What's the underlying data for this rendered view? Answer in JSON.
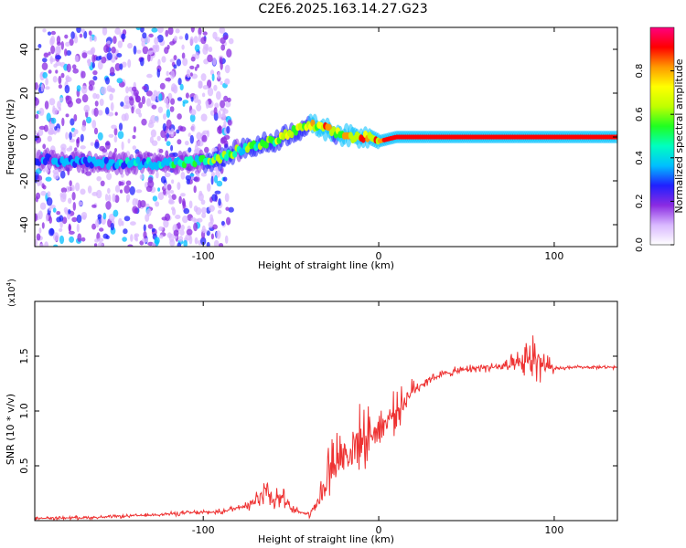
{
  "page_title": "C2E6.2025.163.14.27.G23",
  "chart_data": [
    {
      "type": "heatmap",
      "title": "C2E6.2025.163.14.27.G23",
      "xlabel": "Height of straight line (km)",
      "ylabel": "Frequency (Hz)",
      "xlim": [
        -196,
        136
      ],
      "ylim": [
        -50,
        50
      ],
      "x_ticks": [
        -100,
        0,
        100
      ],
      "y_ticks": [
        -40,
        -20,
        0,
        20,
        40
      ],
      "colorbar": {
        "label": "Normalized spectral amplitude",
        "range": [
          0,
          1
        ],
        "ticks": [
          0.0,
          0.2,
          0.4,
          0.6,
          0.8
        ],
        "colors": [
          "#ffffff",
          "#d9b8ff",
          "#8a2be2",
          "#2020ff",
          "#00bfff",
          "#00ffc0",
          "#20ff20",
          "#c0ff00",
          "#ffff00",
          "#ff9900",
          "#ff0000",
          "#ff0080"
        ]
      },
      "ridge": {
        "x": [
          -196,
          -160,
          -140,
          -120,
          -100,
          -90,
          -80,
          -70,
          -60,
          -50,
          -40,
          -35,
          -25,
          -15,
          -5,
          0,
          10,
          30,
          60,
          90,
          120,
          136
        ],
        "freq": [
          -10,
          -12,
          -12,
          -12,
          -11,
          -10,
          -6,
          -4,
          -2,
          2,
          5,
          5,
          2,
          0,
          0,
          -2,
          0,
          0,
          0,
          0,
          0,
          0
        ],
        "amp": [
          0.3,
          0.35,
          0.4,
          0.45,
          0.5,
          0.55,
          0.5,
          0.55,
          0.6,
          0.65,
          0.7,
          0.75,
          0.7,
          0.75,
          0.8,
          0.85,
          0.9,
          0.9,
          0.9,
          0.9,
          0.9,
          0.9
        ]
      },
      "noise_region_x": [
        -196,
        -84
      ],
      "grid": false
    },
    {
      "type": "line",
      "xlabel": "Height of straight line (km)",
      "ylabel": "SNR (10 * v/v)",
      "multiplier_label": "(x10",
      "multiplier_exp": "4",
      "xlim": [
        -196,
        136
      ],
      "ylim": [
        0,
        2.0
      ],
      "x_ticks": [
        -100,
        0,
        100
      ],
      "y_ticks": [
        0.5,
        1.0,
        1.5
      ],
      "color": "#ee3333",
      "x": [
        -196,
        -160,
        -130,
        -110,
        -90,
        -80,
        -70,
        -65,
        -60,
        -55,
        -50,
        -40,
        -32,
        -28,
        -25,
        -20,
        -15,
        -10,
        -5,
        0,
        5,
        10,
        15,
        20,
        30,
        40,
        50,
        60,
        70,
        80,
        85,
        90,
        95,
        100,
        110,
        120,
        136
      ],
      "y": [
        0.02,
        0.03,
        0.05,
        0.07,
        0.08,
        0.12,
        0.18,
        0.3,
        0.2,
        0.22,
        0.1,
        0.06,
        0.25,
        0.5,
        0.55,
        0.6,
        0.65,
        0.75,
        0.78,
        0.85,
        0.92,
        1.0,
        1.1,
        1.2,
        1.3,
        1.35,
        1.38,
        1.4,
        1.4,
        1.42,
        1.45,
        1.5,
        1.4,
        1.38,
        1.4,
        1.4,
        1.4
      ],
      "spread": [
        0.02,
        0.02,
        0.02,
        0.03,
        0.03,
        0.05,
        0.12,
        0.25,
        0.15,
        0.12,
        0.05,
        0.04,
        0.25,
        0.45,
        0.5,
        0.4,
        0.4,
        0.35,
        0.3,
        0.28,
        0.25,
        0.22,
        0.18,
        0.12,
        0.06,
        0.05,
        0.05,
        0.05,
        0.08,
        0.15,
        0.25,
        0.4,
        0.3,
        0.03,
        0.02,
        0.02,
        0.02
      ],
      "grid": false
    }
  ]
}
